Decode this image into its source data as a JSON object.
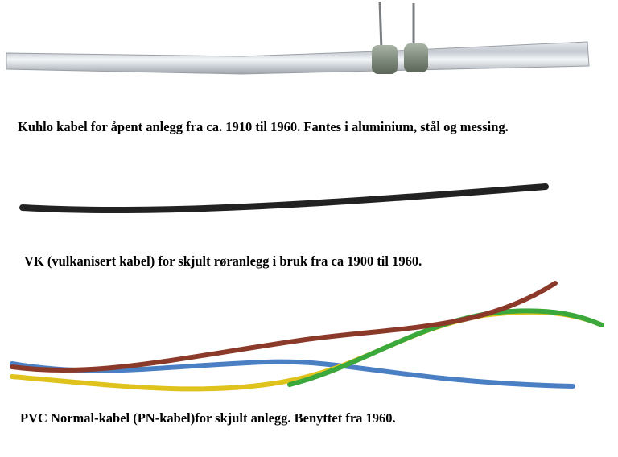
{
  "captions": [
    "Kuhlo kabel for åpent anlegg fra ca. 1910 til 1960. Fantes i aluminium, stål og messing.",
    "VK (vulkanisert kabel) for skjult røranlegg i bruk fra ca 1900 til 1960.",
    "PVC Normal-kabel (PN-kabel)for skjult anlegg. Benyttet fra 1960."
  ]
}
